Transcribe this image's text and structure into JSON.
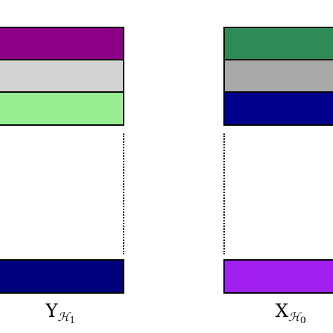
{
  "left_column": {
    "label": {
      "base": "Y",
      "sub": "ℋ",
      "idx": "1"
    },
    "rows": [
      {
        "color": "#8b0085"
      },
      {
        "color": "#d3d3d3"
      },
      {
        "color": "#98ee92"
      },
      {
        "color": "#00007d"
      }
    ]
  },
  "right_column": {
    "label": {
      "base": "X",
      "sub": "ℋ",
      "idx": "0"
    },
    "rows": [
      {
        "color": "#2e8a57"
      },
      {
        "color": "#a9a9a9"
      },
      {
        "color": "#00008b"
      },
      {
        "color": "#a020f0"
      }
    ]
  }
}
